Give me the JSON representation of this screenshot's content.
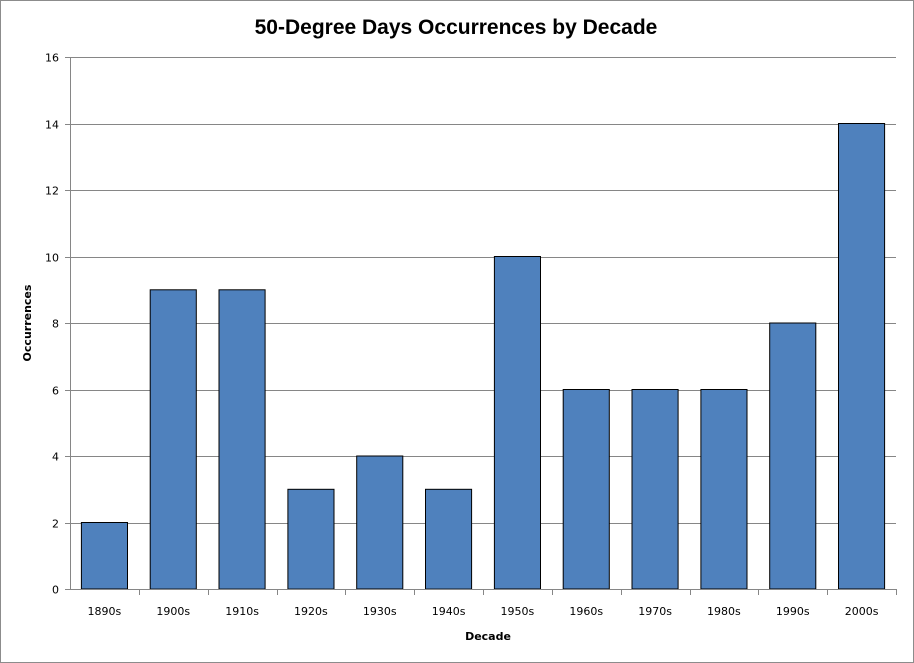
{
  "chart_data": {
    "type": "bar",
    "title": "50-Degree Days Occurrences by Decade",
    "xlabel": "Decade",
    "ylabel": "Occurrences",
    "categories": [
      "1890s",
      "1900s",
      "1910s",
      "1920s",
      "1930s",
      "1940s",
      "1950s",
      "1960s",
      "1970s",
      "1980s",
      "1990s",
      "2000s"
    ],
    "values": [
      2,
      9,
      9,
      3,
      4,
      3,
      10,
      6,
      6,
      6,
      8,
      14
    ],
    "ylim": [
      0,
      16
    ],
    "yticks": [
      "0",
      "2",
      "4",
      "6",
      "8",
      "10",
      "12",
      "14",
      "16"
    ],
    "grid": true,
    "legend": "none",
    "colors": {
      "bar": "#4f81bd",
      "bar_edge": "#000000",
      "grid": "#868686"
    }
  }
}
